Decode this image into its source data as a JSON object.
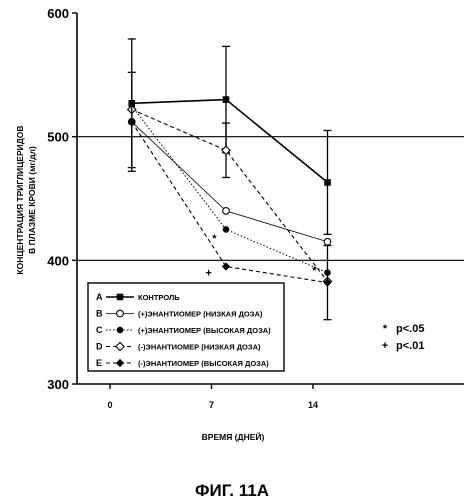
{
  "chart_data": {
    "type": "line",
    "caption": "ФИГ. 11А",
    "xlabel": "ВРЕМЯ (ДНЕЙ)",
    "ylabel_line1": "КОНЦЕНТРАЦИЯ ТРИГЛИЦЕРИДОВ",
    "ylabel_line2": "В ПЛАЗМЕ КРОВИ (мг/дл)",
    "ylim": [
      300,
      600
    ],
    "yticks": [
      300,
      400,
      500,
      600
    ],
    "xlim": [
      -3,
      22
    ],
    "xticks": [
      0,
      7,
      14
    ],
    "hlines": [
      400,
      500
    ],
    "series": [
      {
        "key": "A",
        "name": "КОНТРОЛЬ",
        "marker": "filled-square",
        "dash": "solid",
        "x": [
          1.5,
          8,
          15
        ],
        "y": [
          527,
          530,
          463
        ],
        "err": [
          52,
          43,
          42
        ]
      },
      {
        "key": "B",
        "name": "(+)ЭНАНТИОМЕР (НИЗКАЯ ДОЗА)",
        "marker": "open-circle",
        "dash": "thin",
        "x": [
          1.5,
          8,
          15
        ],
        "y": [
          512,
          440,
          415
        ],
        "err": [
          0,
          0,
          0
        ]
      },
      {
        "key": "C",
        "name": "(+)ЭНАНТИОМЕР (ВЫСОКАЯ ДОЗА)",
        "marker": "filled-circle",
        "dash": "dot",
        "x": [
          1.5,
          8,
          15
        ],
        "y": [
          525,
          425,
          390
        ],
        "err": [
          0,
          0,
          0
        ]
      },
      {
        "key": "D",
        "name": "(-)ЭНАНТИОМЕР (НИЗКАЯ ДОЗА)",
        "marker": "open-diamond",
        "dash": "dash",
        "x": [
          1.5,
          8,
          15
        ],
        "y": [
          522,
          489,
          383
        ],
        "err": [
          0,
          22,
          0
        ]
      },
      {
        "key": "E",
        "name": "(-)ЭНАНТИОМЕР (ВЫСОКАЯ ДОЗА)",
        "marker": "filled-diamond",
        "dash": "dash",
        "x": [
          1.5,
          8,
          15
        ],
        "y": [
          512,
          395,
          382
        ],
        "err": [
          40,
          0,
          30
        ]
      }
    ],
    "annotations": [
      {
        "text": "*",
        "x": 7.2,
        "y": 418
      },
      {
        "text": "+",
        "x": 6.8,
        "y": 390
      },
      {
        "text": "*",
        "x": 14.1,
        "y": 392
      }
    ],
    "significance": [
      {
        "symbol": "*",
        "label": "p<.05"
      },
      {
        "symbol": "+",
        "label": "p<.01"
      }
    ],
    "legend_position": "bottom-left"
  }
}
